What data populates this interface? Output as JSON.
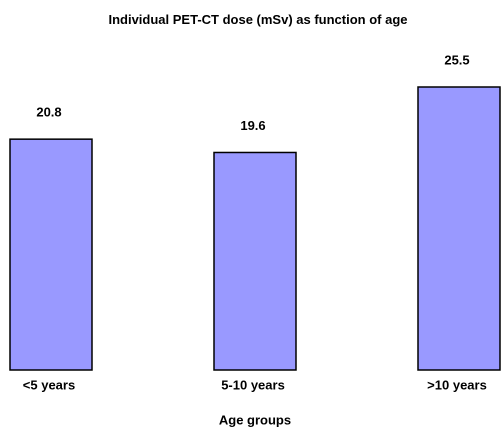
{
  "chart_data": {
    "type": "bar",
    "title": "Individual PET-CT dose (mSv) as function of age",
    "x_label": "Age groups",
    "categories": [
      "<5 years",
      "5-10 years",
      ">10 years"
    ],
    "values": [
      20.8,
      19.6,
      25.5
    ],
    "color": "#9999ff"
  }
}
